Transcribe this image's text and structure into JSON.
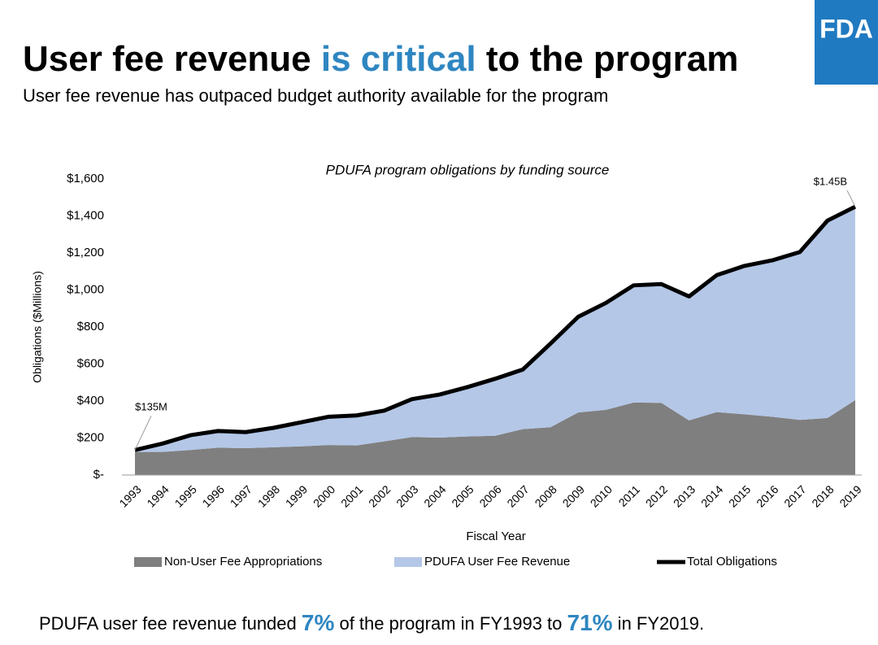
{
  "header": {
    "title_start": "User fee revenue ",
    "title_highlight": "is critical",
    "title_end": " to the program",
    "subtitle": "User fee revenue has outpaced budget authority available for the program",
    "logo": "FDA"
  },
  "footer": {
    "text_start": "PDUFA user fee revenue funded ",
    "pct_start": "7%",
    "text_middle": " of the program in FY1993 to ",
    "pct_end": "71%",
    "text_end": " in FY2019."
  },
  "chart_data": {
    "type": "stacked_area",
    "title": "PDUFA program obligations by funding source",
    "y_label": "Obligations ($Millions)",
    "x_label": "Fiscal Year",
    "categories": [
      "1993",
      "1994",
      "1995",
      "1996",
      "1997",
      "1998",
      "1999",
      "2000",
      "2001",
      "2002",
      "2003",
      "2004",
      "2005",
      "2006",
      "2007",
      "2008",
      "2009",
      "2010",
      "2011",
      "2012",
      "2013",
      "2014",
      "2015",
      "2016",
      "2017",
      "2018",
      "2019"
    ],
    "series": [
      {
        "name": "Non-User Fee Appropriations",
        "color": "#7f7f7f",
        "values": [
          125,
          125,
          135,
          148,
          145,
          150,
          155,
          162,
          160,
          182,
          205,
          202,
          208,
          212,
          248,
          258,
          338,
          352,
          392,
          390,
          295,
          340,
          328,
          315,
          298,
          308,
          405
        ]
      },
      {
        "name": "PDUFA User Fee Revenue",
        "color": "#b4c7e7",
        "values": [
          10,
          45,
          80,
          90,
          87,
          105,
          130,
          153,
          162,
          166,
          205,
          233,
          267,
          308,
          322,
          452,
          517,
          578,
          633,
          642,
          670,
          740,
          802,
          845,
          907,
          1067,
          1045
        ]
      },
      {
        "name": "Total Obligations",
        "color": "#000000",
        "type": "line",
        "values": [
          135,
          170,
          215,
          238,
          232,
          255,
          285,
          315,
          322,
          348,
          410,
          435,
          475,
          520,
          570,
          710,
          855,
          930,
          1025,
          1032,
          965,
          1080,
          1130,
          1160,
          1205,
          1375,
          1450
        ],
        "value_labels": [
          "$135M",
          null,
          null,
          null,
          null,
          null,
          null,
          null,
          null,
          null,
          null,
          null,
          null,
          null,
          null,
          null,
          null,
          null,
          null,
          null,
          null,
          null,
          null,
          null,
          null,
          null,
          "$1.45B"
        ]
      }
    ],
    "ylim": [
      0,
      1600
    ],
    "yticks": [
      {
        "value": 0,
        "label": "$-"
      },
      {
        "value": 200,
        "label": "$200"
      },
      {
        "value": 400,
        "label": "$400"
      },
      {
        "value": 600,
        "label": "$600"
      },
      {
        "value": 800,
        "label": "$800"
      },
      {
        "value": 1000,
        "label": "$1,000"
      },
      {
        "value": 1200,
        "label": "$1,200"
      },
      {
        "value": 1400,
        "label": "$1,400"
      },
      {
        "value": 1600,
        "label": "$1,600"
      }
    ],
    "legend": "bottom"
  }
}
